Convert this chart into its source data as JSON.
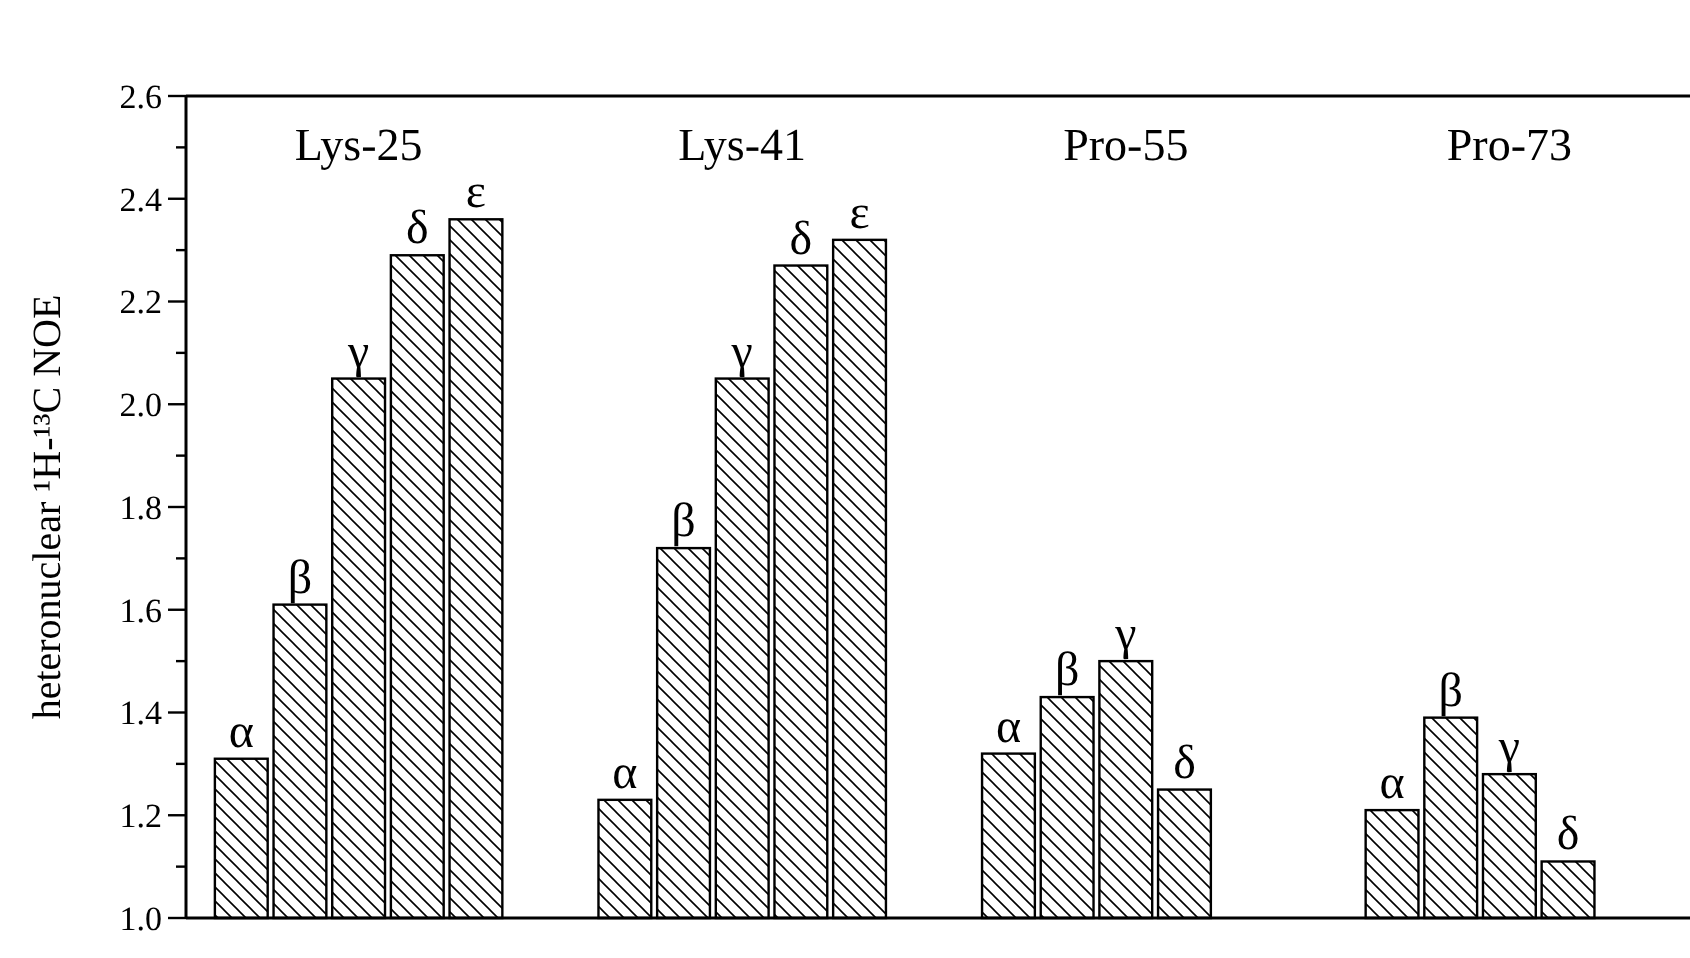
{
  "chart_data": {
    "type": "bar",
    "ylabel": "heteronuclear ¹H-¹³C NOE",
    "categories": [
      "Lys-25",
      "Lys-41",
      "Pro-55",
      "Pro-73"
    ],
    "series": [
      {
        "name": "α",
        "color": "#000000",
        "values": [
          1.31,
          1.23,
          1.32,
          1.21
        ]
      },
      {
        "name": "β",
        "color": "#000000",
        "values": [
          1.61,
          1.72,
          1.43,
          1.39
        ]
      },
      {
        "name": "γ",
        "color": "#000000",
        "values": [
          2.05,
          2.05,
          1.5,
          1.28
        ]
      },
      {
        "name": "δ",
        "color": "#000000",
        "values": [
          2.29,
          2.27,
          1.25,
          1.11
        ]
      },
      {
        "name": "ε",
        "color": "#000000",
        "values": [
          2.36,
          2.32,
          null,
          null
        ]
      }
    ],
    "ylim": [
      1.0,
      2.6
    ],
    "yticks": [
      {
        "value": 1.0,
        "label": "1.0"
      },
      {
        "value": 1.1,
        "label": null
      },
      {
        "value": 1.2,
        "label": "1.2"
      },
      {
        "value": 1.3,
        "label": null
      },
      {
        "value": 1.4,
        "label": "1.4"
      },
      {
        "value": 1.5,
        "label": null
      },
      {
        "value": 1.6,
        "label": "1.6"
      },
      {
        "value": 1.7,
        "label": null
      },
      {
        "value": 1.8,
        "label": "1.8"
      },
      {
        "value": 1.9,
        "label": null
      },
      {
        "value": 2.0,
        "label": "2.0"
      },
      {
        "value": 2.1,
        "label": null
      },
      {
        "value": 2.2,
        "label": "2.2"
      },
      {
        "value": 2.3,
        "label": null
      },
      {
        "value": 2.4,
        "label": "2.4"
      },
      {
        "value": 2.5,
        "label": null
      },
      {
        "value": 2.6,
        "label": "2.6"
      }
    ],
    "grid": false
  }
}
